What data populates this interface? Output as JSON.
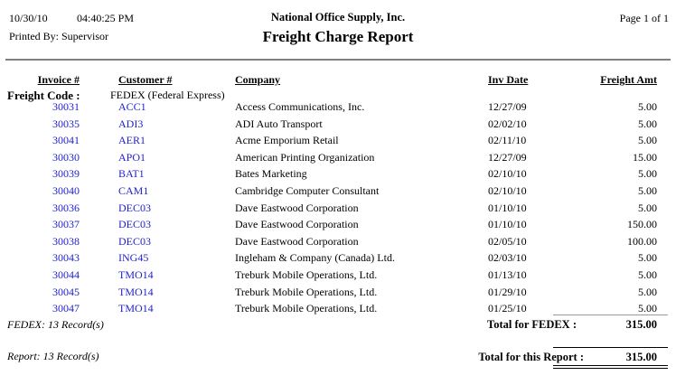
{
  "page": {
    "date": "10/30/10",
    "time": "04:40:25 PM",
    "printed_by": "Printed By: Supervisor",
    "company_name": "National Office Supply, Inc.",
    "report_title": "Freight Charge Report",
    "page_label": "Page 1 of  1"
  },
  "table": {
    "headers": {
      "invoice": "Invoice #",
      "customer": "Customer #",
      "company": "Company",
      "inv_date": "Inv Date",
      "freight_amt": "Freight Amt"
    },
    "group": {
      "label": "Freight Code :",
      "value": "FEDEX (Federal Express)"
    },
    "rows": [
      {
        "invoice": "30031",
        "customer": "ACC1",
        "company": "Access Communications, Inc.",
        "inv_date": "12/27/09",
        "freight_amt": "5.00"
      },
      {
        "invoice": "30035",
        "customer": "ADI3",
        "company": "ADI Auto Transport",
        "inv_date": "02/02/10",
        "freight_amt": "5.00"
      },
      {
        "invoice": "30041",
        "customer": "AER1",
        "company": "Acme Emporium Retail",
        "inv_date": "02/11/10",
        "freight_amt": "5.00"
      },
      {
        "invoice": "30030",
        "customer": "APO1",
        "company": "American Printing Organization",
        "inv_date": "12/27/09",
        "freight_amt": "15.00"
      },
      {
        "invoice": "30039",
        "customer": "BAT1",
        "company": "Bates Marketing",
        "inv_date": "02/10/10",
        "freight_amt": "5.00"
      },
      {
        "invoice": "30040",
        "customer": "CAM1",
        "company": "Cambridge Computer Consultant",
        "inv_date": "02/10/10",
        "freight_amt": "5.00"
      },
      {
        "invoice": "30036",
        "customer": "DEC03",
        "company": "Dave Eastwood Corporation",
        "inv_date": "01/10/10",
        "freight_amt": "5.00"
      },
      {
        "invoice": "30037",
        "customer": "DEC03",
        "company": "Dave Eastwood Corporation",
        "inv_date": "01/10/10",
        "freight_amt": "150.00"
      },
      {
        "invoice": "30038",
        "customer": "DEC03",
        "company": "Dave Eastwood Corporation",
        "inv_date": "02/05/10",
        "freight_amt": "100.00"
      },
      {
        "invoice": "30043",
        "customer": "ING45",
        "company": "Ingleham & Company (Canada) Ltd.",
        "inv_date": "02/03/10",
        "freight_amt": "5.00"
      },
      {
        "invoice": "30044",
        "customer": "TMO14",
        "company": "Treburk Mobile Operations, Ltd.",
        "inv_date": "01/13/10",
        "freight_amt": "5.00"
      },
      {
        "invoice": "30045",
        "customer": "TMO14",
        "company": "Treburk Mobile Operations, Ltd.",
        "inv_date": "01/29/10",
        "freight_amt": "5.00"
      },
      {
        "invoice": "30047",
        "customer": "TMO14",
        "company": "Treburk Mobile Operations, Ltd.",
        "inv_date": "01/25/10",
        "freight_amt": "5.00"
      }
    ]
  },
  "group_footer": {
    "record_count": "FEDEX: 13 Record(s)",
    "total_label": "Total for FEDEX :",
    "total_value": "315.00"
  },
  "report_footer": {
    "record_count": "Report: 13 Record(s)",
    "total_label": "Total for this Report :",
    "total_value": "315.00"
  },
  "colors": {
    "link_blue": "#2222cc",
    "rule_gray": "#808080"
  }
}
